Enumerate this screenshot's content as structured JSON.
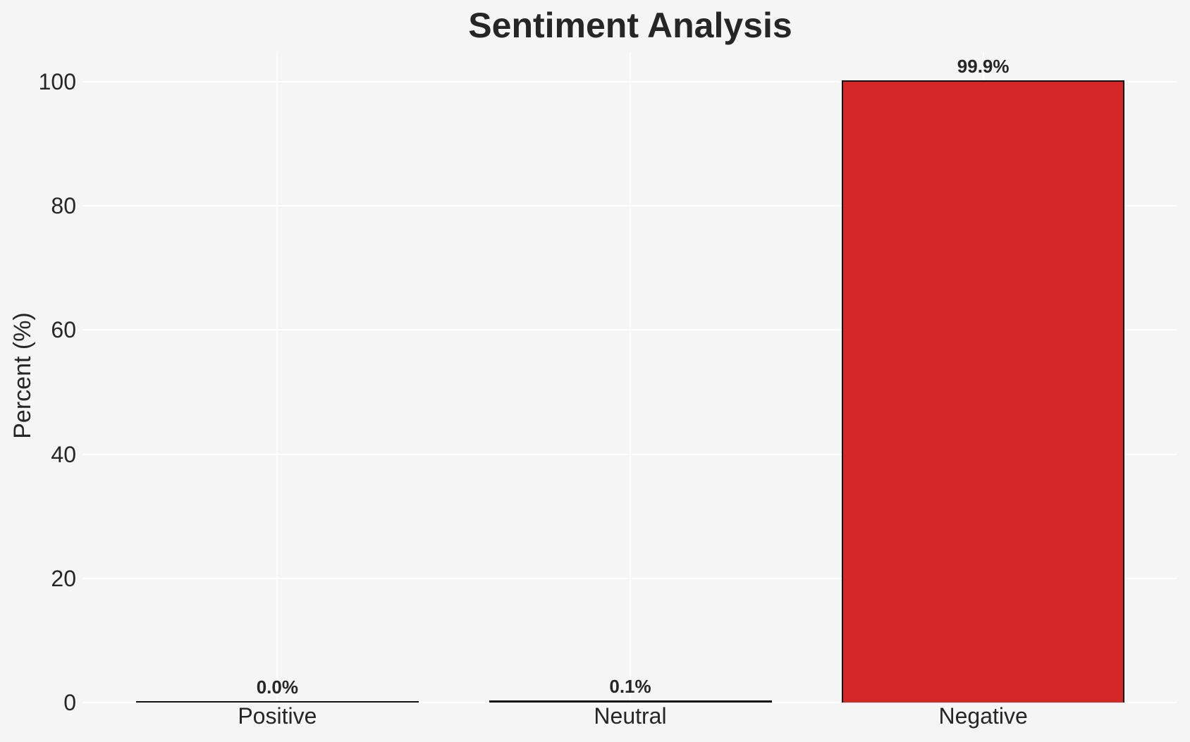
{
  "chart_data": {
    "type": "bar",
    "title": "Sentiment Analysis",
    "xlabel": "",
    "ylabel": "Percent (%)",
    "categories": [
      "Positive",
      "Neutral",
      "Negative"
    ],
    "values": [
      0.0,
      0.1,
      99.9
    ],
    "value_labels": [
      "0.0%",
      "0.1%",
      "99.9%"
    ],
    "yticks": [
      0,
      20,
      40,
      60,
      80,
      100
    ],
    "ylim": [
      0,
      104.8
    ],
    "grid": true,
    "legend": false,
    "bar_colors": [
      null,
      null,
      "#d62728"
    ],
    "bar_edge_color": "#111111",
    "background_color": "#f5f5f6",
    "gridline_color": "#ffffff",
    "text_color": "#262626"
  }
}
